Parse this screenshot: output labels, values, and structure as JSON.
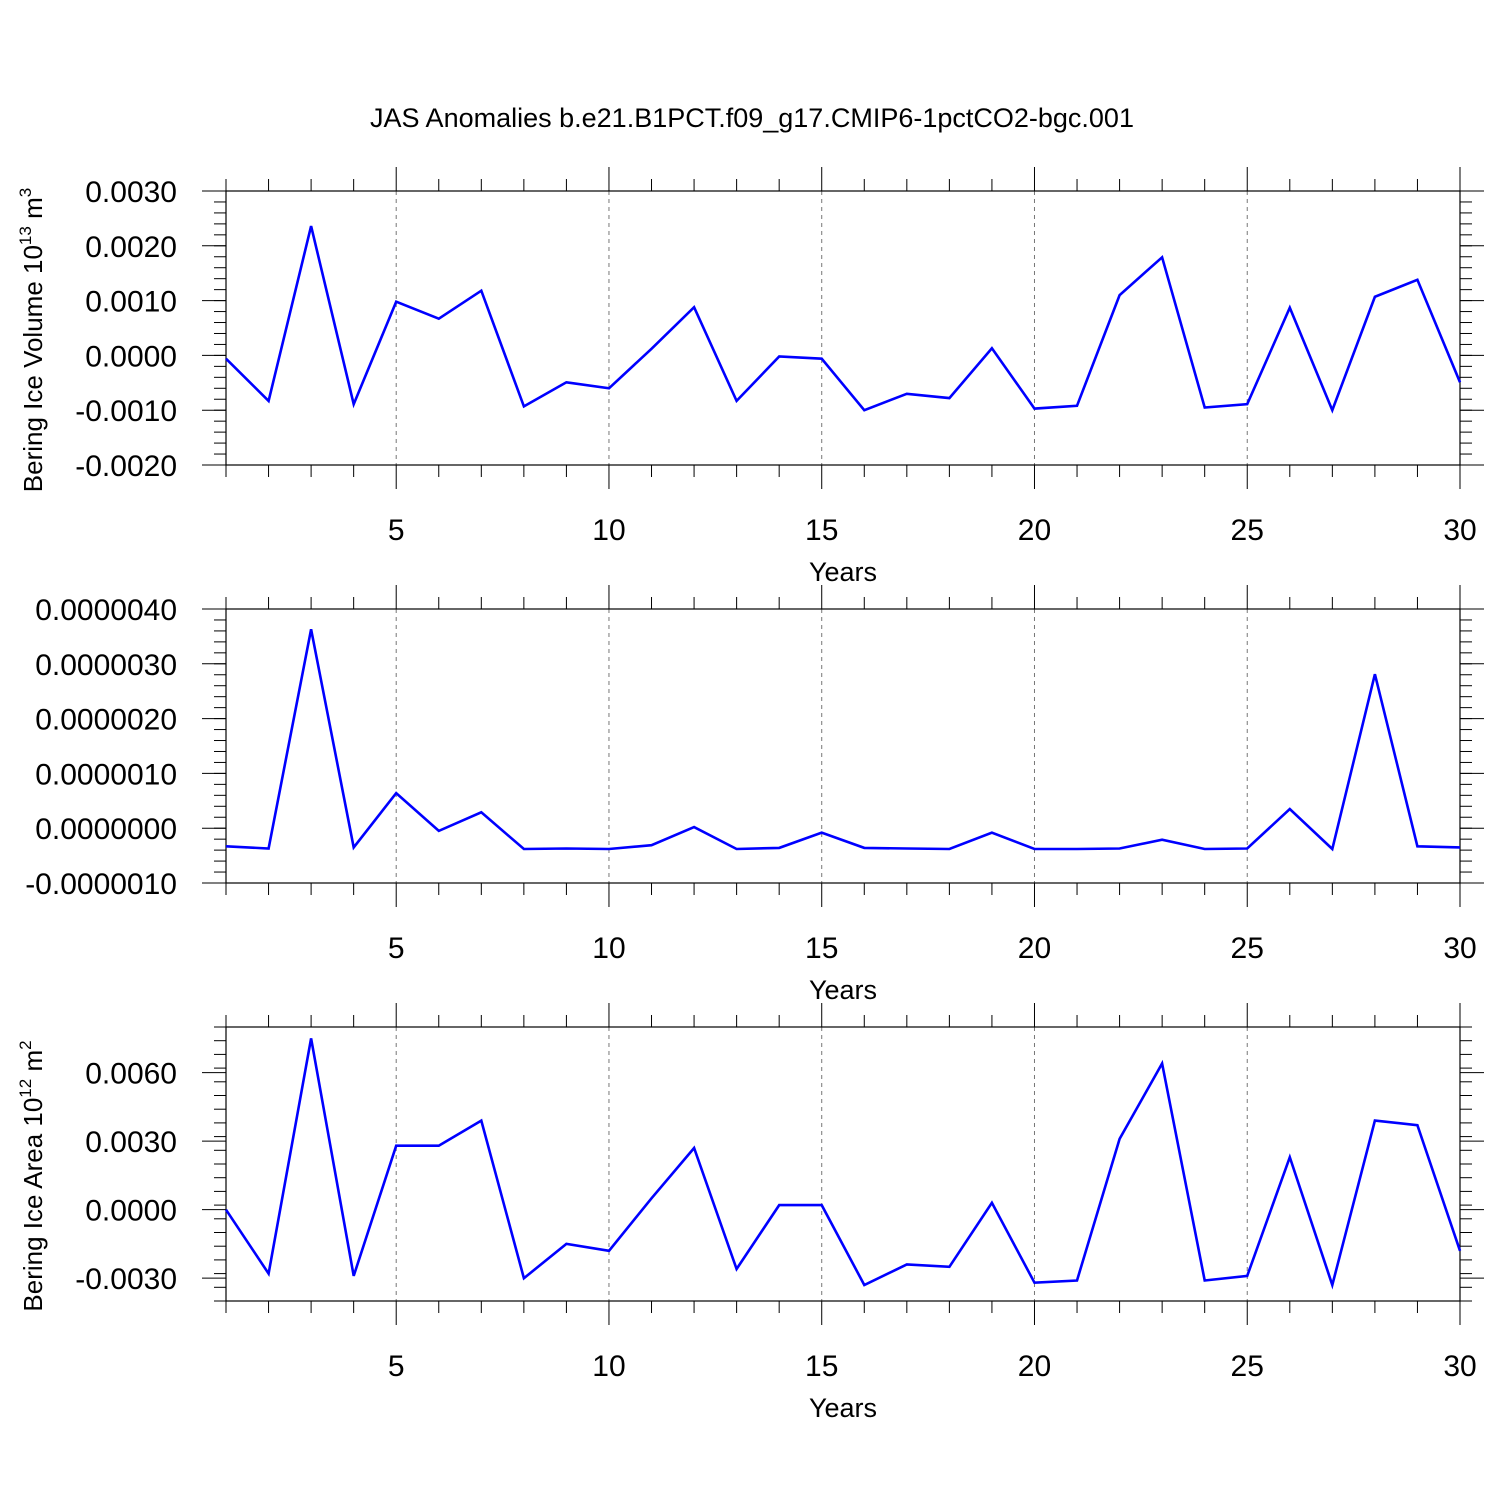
{
  "title": "JAS Anomalies b.e21.B1PCT.f09_g17.CMIP6-1pctCO2-bgc.001",
  "chart_data": [
    {
      "type": "line",
      "ylabel": {
        "main": "Bering Ice Volume 10",
        "sup": "13",
        "unit": " m",
        "unit_sup": "3"
      },
      "xlabel": "Years",
      "xlim": [
        1,
        30
      ],
      "ylim": [
        -0.002,
        0.003
      ],
      "x_ticks": [
        5,
        10,
        15,
        20,
        25,
        30
      ],
      "x_tick_labels": [
        "5",
        "10",
        "15",
        "20",
        "25",
        "30"
      ],
      "y_ticks": [
        -0.002,
        -0.001,
        0.0,
        0.001,
        0.002,
        0.003
      ],
      "y_tick_labels": [
        "-0.0020",
        "-0.0010",
        "0.0000",
        "0.0010",
        "0.0020",
        "0.0030"
      ],
      "grid": "vertical dashed at major x ticks",
      "color": "#0000ff",
      "series": [
        {
          "x": [
            1,
            2,
            3,
            4,
            5,
            6,
            7,
            8,
            9,
            10,
            11,
            12,
            13,
            14,
            15,
            16,
            17,
            18,
            19,
            20,
            21,
            22,
            23,
            24,
            25,
            26,
            27,
            28,
            29,
            30
          ],
          "values": [
            -6e-05,
            -0.00083,
            0.00236,
            -0.00089,
            0.00098,
            0.00067,
            0.00118,
            -0.00093,
            -0.00049,
            -0.0006,
            0.00012,
            0.00088,
            -0.00083,
            -2e-05,
            -6e-05,
            -0.001,
            -0.0007,
            -0.00078,
            0.00013,
            -0.00097,
            -0.00092,
            0.0011,
            0.00179,
            -0.00095,
            -0.00089,
            0.00087,
            -0.001,
            0.00107,
            0.00138,
            -0.00049
          ]
        }
      ]
    },
    {
      "type": "line",
      "ylabel": null,
      "xlabel": "Years",
      "xlim": [
        1,
        30
      ],
      "ylim": [
        -1e-06,
        4e-06
      ],
      "x_ticks": [
        5,
        10,
        15,
        20,
        25,
        30
      ],
      "x_tick_labels": [
        "5",
        "10",
        "15",
        "20",
        "25",
        "30"
      ],
      "y_ticks": [
        -1e-06,
        0.0,
        1e-06,
        2e-06,
        3e-06,
        4e-06
      ],
      "y_tick_labels": [
        "-0.0000010",
        "0.0000000",
        "0.0000010",
        "0.0000020",
        "0.0000030",
        "0.0000040"
      ],
      "grid": "vertical dashed at major x ticks",
      "color": "#0000ff",
      "series": [
        {
          "x": [
            1,
            2,
            3,
            4,
            5,
            6,
            7,
            8,
            9,
            10,
            11,
            12,
            13,
            14,
            15,
            16,
            17,
            18,
            19,
            20,
            21,
            22,
            23,
            24,
            25,
            26,
            27,
            28,
            29,
            30
          ],
          "values": [
            -3.3e-07,
            -3.7e-07,
            3.63e-06,
            -3.5e-07,
            6.4e-07,
            -5e-08,
            2.9e-07,
            -3.8e-07,
            -3.7e-07,
            -3.8e-07,
            -3.1e-07,
            2e-08,
            -3.8e-07,
            -3.6e-07,
            -8e-08,
            -3.6e-07,
            -3.7e-07,
            -3.8e-07,
            -8e-08,
            -3.8e-07,
            -3.8e-07,
            -3.7e-07,
            -2.1e-07,
            -3.8e-07,
            -3.7e-07,
            3.5e-07,
            -3.8e-07,
            2.81e-06,
            -3.3e-07,
            -3.5e-07
          ]
        }
      ]
    },
    {
      "type": "line",
      "ylabel": {
        "main": "Bering Ice Area 10",
        "sup": "12",
        "unit": " m",
        "unit_sup": "2"
      },
      "xlabel": "Years",
      "xlim": [
        1,
        30
      ],
      "ylim": [
        -0.004,
        0.008
      ],
      "x_ticks": [
        5,
        10,
        15,
        20,
        25,
        30
      ],
      "x_tick_labels": [
        "5",
        "10",
        "15",
        "20",
        "25",
        "30"
      ],
      "y_ticks": [
        -0.003,
        0.0,
        0.003,
        0.006
      ],
      "y_tick_labels": [
        "-0.0030",
        "0.0000",
        "0.0030",
        "0.0060"
      ],
      "grid": "vertical dashed at major x ticks",
      "color": "#0000ff",
      "series": [
        {
          "x": [
            1,
            2,
            3,
            4,
            5,
            6,
            7,
            8,
            9,
            10,
            11,
            12,
            13,
            14,
            15,
            16,
            17,
            18,
            19,
            20,
            21,
            22,
            23,
            24,
            25,
            26,
            27,
            28,
            29,
            30
          ],
          "values": [
            0.0,
            -0.0028,
            0.0075,
            -0.0029,
            0.0028,
            0.0028,
            0.0039,
            -0.003,
            -0.0015,
            -0.0018,
            0.0005,
            0.0027,
            -0.0026,
            0.0002,
            0.0002,
            -0.0033,
            -0.0024,
            -0.0025,
            0.0003,
            -0.0032,
            -0.0031,
            0.0031,
            0.0064,
            -0.0031,
            -0.0029,
            0.0023,
            -0.0033,
            0.0039,
            0.0037,
            -0.0018
          ]
        }
      ]
    }
  ]
}
